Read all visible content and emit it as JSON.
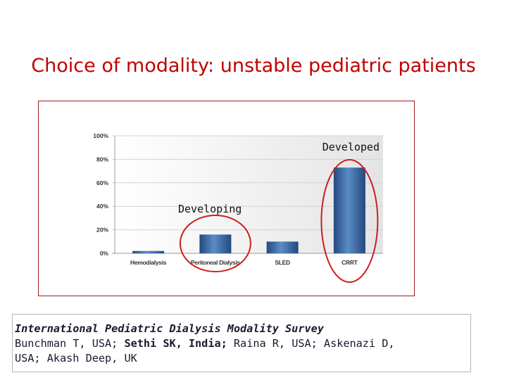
{
  "slide": {
    "title": "Choice of modality: unstable pediatric patients"
  },
  "chart_data": {
    "type": "bar",
    "categories": [
      "Hemodialysis",
      "Peritoneal Dialysis",
      "SLED",
      "CRRT"
    ],
    "values": [
      2,
      16,
      10,
      73
    ],
    "ylim": [
      0,
      100
    ],
    "yticks": [
      "0%",
      "20%",
      "40%",
      "60%",
      "80%",
      "100%"
    ],
    "grid": true,
    "annotations": [
      {
        "text": "Developing",
        "category": "Peritoneal Dialysis"
      },
      {
        "text": "Developed",
        "category": "CRRT"
      }
    ]
  },
  "citation": {
    "title": "International Pediatric Dialysis Modality Survey",
    "line1_a": "Bunchman T, USA; ",
    "line1_bold": "Sethi SK, India;",
    "line1_b": " Raina R, USA; Askenazi D,",
    "line2": "USA; Akash Deep, UK"
  },
  "colors": {
    "title": "#c00000",
    "bar": "#3a6aa8",
    "annotation_ring": "#cc1f1f",
    "plot_bg": "#eeeeee"
  }
}
